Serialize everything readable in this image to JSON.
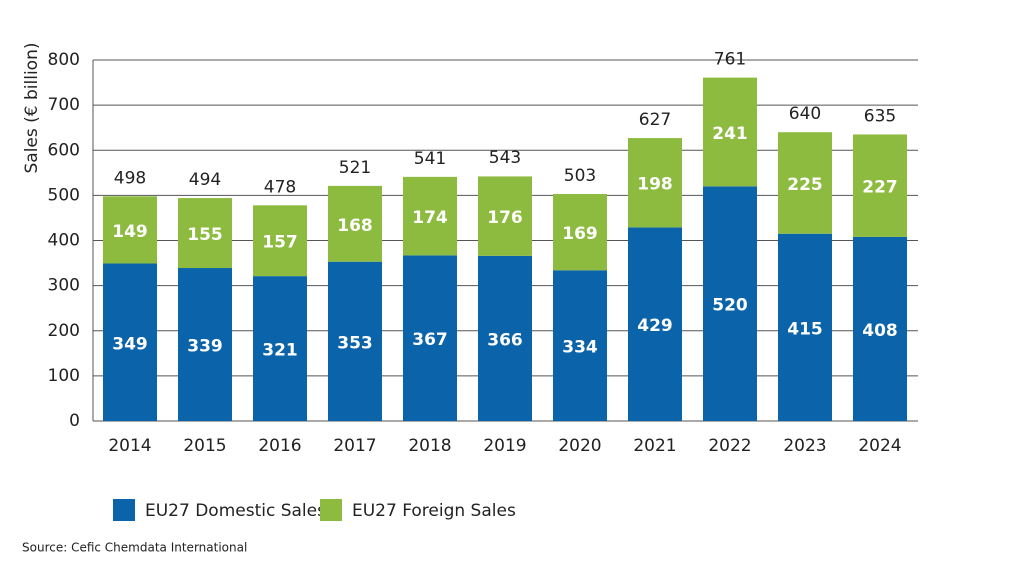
{
  "chart_data": {
    "type": "bar",
    "stacked": true,
    "y_label": "Sales (€ billion)",
    "categories": [
      "2014",
      "2015",
      "2016",
      "2017",
      "2018",
      "2019",
      "2020",
      "2021",
      "2022",
      "2023",
      "2024"
    ],
    "series": [
      {
        "name": "EU27 Domestic Sales",
        "color": "#0b63a9",
        "values": [
          349,
          339,
          321,
          353,
          367,
          366,
          334,
          429,
          520,
          415,
          408
        ]
      },
      {
        "name": "EU27 Foreign Sales",
        "color": "#8dbb3f",
        "values": [
          149,
          155,
          157,
          168,
          174,
          176,
          169,
          198,
          241,
          225,
          227
        ]
      }
    ],
    "totals": [
      498,
      494,
      478,
      521,
      541,
      543,
      503,
      627,
      761,
      640,
      635
    ],
    "ylim": [
      0,
      800
    ],
    "yticks": [
      0,
      100,
      200,
      300,
      400,
      500,
      600,
      700,
      800
    ],
    "grid": true,
    "source": "Source: Cefic Chemdata International"
  }
}
